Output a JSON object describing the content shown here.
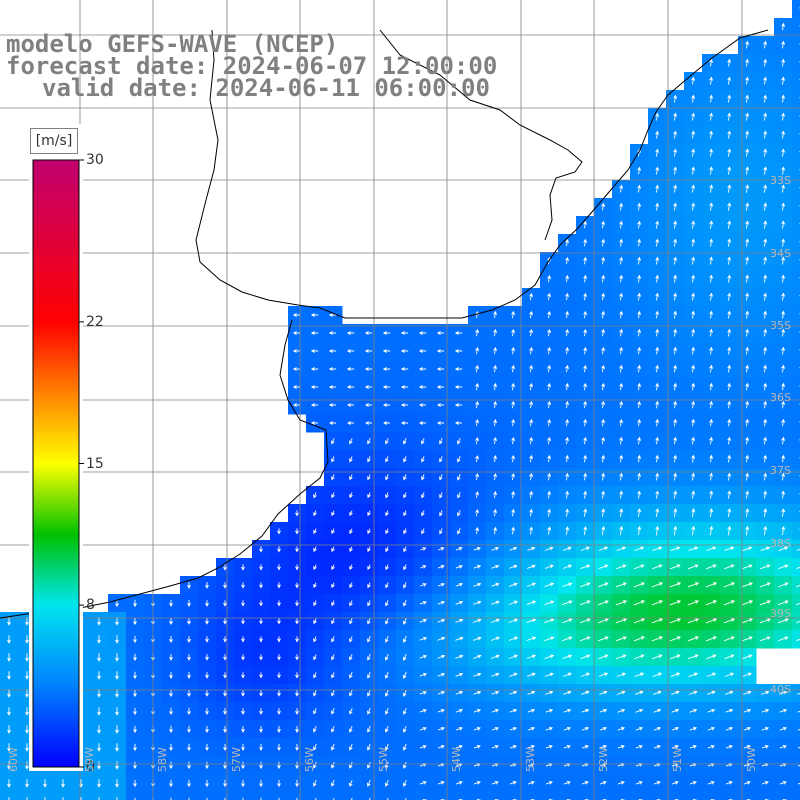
{
  "title": {
    "line1": "modelo GEFS-WAVE (NCEP)",
    "line2": "forecast date: 2024-06-07 12:00:00",
    "line3": "valid date: 2024-06-11 06:00:00"
  },
  "colorbar": {
    "unit": "[m/s]",
    "ticks": [
      "30",
      "22",
      "15",
      "8",
      "0"
    ],
    "range": [
      0,
      30
    ],
    "colors": [
      "#0000ff",
      "#0080ff",
      "#00e5ee",
      "#00c000",
      "#ffff00",
      "#ff8000",
      "#ff0000",
      "#c00070"
    ]
  },
  "graticule": {
    "lat_labels": [
      "33S",
      "34S",
      "35S",
      "36S",
      "37S",
      "38S",
      "39S",
      "40S"
    ],
    "lon_labels": [
      "60W",
      "59W",
      "58W",
      "57W",
      "56W",
      "55W",
      "54W",
      "53W",
      "52W",
      "51W",
      "50W"
    ]
  },
  "map": {
    "land_color": "#ffffff",
    "coast_color": "#000000",
    "grid_color": "#808080",
    "arrow_color": "#ffffff"
  }
}
